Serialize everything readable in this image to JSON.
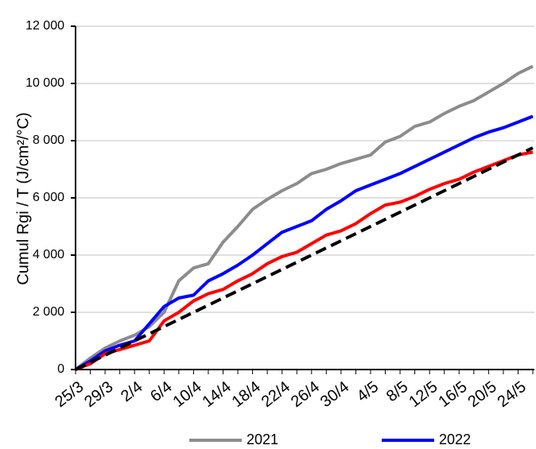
{
  "chart_data": {
    "type": "line",
    "y_label": "Cumul Rgi / T (J/cm²/°C)",
    "categories": [
      "25/3",
      null,
      "29/3",
      null,
      "2/4",
      null,
      "6/4",
      null,
      "10/4",
      null,
      "14/4",
      null,
      "18/4",
      null,
      "22/4",
      null,
      "26/4",
      null,
      "30/4",
      null,
      "4/5",
      null,
      "8/5",
      null,
      "12/5",
      null,
      "16/5",
      null,
      "20/5",
      null,
      "24/5",
      null
    ],
    "series": [
      {
        "name": "2021",
        "color": "#8c8c8c",
        "dash": false,
        "values": [
          0,
          400,
          750,
          1000,
          1200,
          1500,
          2000,
          3100,
          3550,
          3700,
          4450,
          5000,
          5600,
          5950,
          6250,
          6500,
          6850,
          7000,
          7200,
          7350,
          7500,
          7950,
          8150,
          8500,
          8650,
          8950,
          9200,
          9400,
          9700,
          10000,
          10350,
          10600
        ]
      },
      {
        "name": "2022",
        "color": "#0000ff",
        "dash": false,
        "values": [
          0,
          300,
          650,
          850,
          1000,
          1600,
          2200,
          2500,
          2600,
          3100,
          3350,
          3650,
          4000,
          4400,
          4800,
          5000,
          5200,
          5600,
          5900,
          6250,
          6450,
          6650,
          6850,
          7100,
          7350,
          7600,
          7850,
          8100,
          8300,
          8450,
          8650,
          8850
        ]
      },
      {
        "color": "#ff0000",
        "dash": false,
        "values": [
          0,
          200,
          550,
          700,
          850,
          1000,
          1700,
          2000,
          2400,
          2650,
          2800,
          3100,
          3350,
          3700,
          3950,
          4100,
          4400,
          4700,
          4850,
          5100,
          5450,
          5750,
          5850,
          6050,
          6300,
          6500,
          6650,
          6900,
          7100,
          7300,
          7500,
          7600
        ]
      },
      {
        "color": "#000000",
        "dash": true,
        "values": [
          0,
          250,
          500,
          750,
          1000,
          1250,
          1500,
          1750,
          2000,
          2250,
          2500,
          2750,
          3000,
          3250,
          3500,
          3750,
          4000,
          4250,
          4500,
          4750,
          5000,
          5250,
          5500,
          5750,
          6000,
          6250,
          6500,
          6750,
          7000,
          7250,
          7500,
          7750
        ]
      }
    ],
    "ylim": [
      0,
      12000
    ],
    "yticks": [
      0,
      {
        "value": 2000,
        "label": "2 000"
      },
      {
        "value": 4000,
        "label": "4 000"
      },
      {
        "value": 6000,
        "label": "6 000"
      },
      {
        "value": 8000,
        "label": "8 000"
      },
      {
        "value": 10000,
        "label": "10 000"
      },
      {
        "value": 12000,
        "label": "12 000"
      }
    ],
    "grid": true
  }
}
